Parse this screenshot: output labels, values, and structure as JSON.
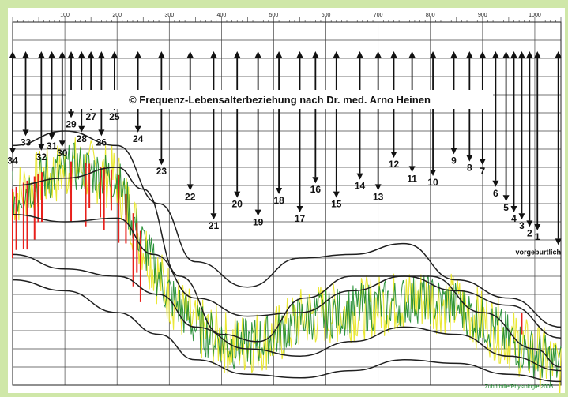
{
  "chart_data": {
    "type": "line",
    "title": "© Frequenz-Lebensalterbeziehung nach Dr. med. Arno Heinen",
    "x_ticks": [
      "100",
      "200",
      "300",
      "400",
      "500",
      "600",
      "700",
      "800",
      "900",
      "1000"
    ],
    "xlim": [
      0,
      1050
    ],
    "ylim": [
      0,
      1
    ],
    "grid": true,
    "age_labels": [
      {
        "label": "34",
        "x": 0,
        "y": 0.61
      },
      {
        "label": "33",
        "x": 25,
        "y": 0.66
      },
      {
        "label": "32",
        "x": 55,
        "y": 0.62
      },
      {
        "label": "31",
        "x": 75,
        "y": 0.65
      },
      {
        "label": "30",
        "x": 95,
        "y": 0.63
      },
      {
        "label": "29",
        "x": 112,
        "y": 0.71
      },
      {
        "label": "28",
        "x": 132,
        "y": 0.67
      },
      {
        "label": "27",
        "x": 150,
        "y": 0.73
      },
      {
        "label": "26",
        "x": 170,
        "y": 0.66
      },
      {
        "label": "25",
        "x": 195,
        "y": 0.73
      },
      {
        "label": "24",
        "x": 240,
        "y": 0.67
      },
      {
        "label": "23",
        "x": 285,
        "y": 0.58
      },
      {
        "label": "22",
        "x": 340,
        "y": 0.51
      },
      {
        "label": "21",
        "x": 385,
        "y": 0.43
      },
      {
        "label": "20",
        "x": 430,
        "y": 0.49
      },
      {
        "label": "19",
        "x": 470,
        "y": 0.44
      },
      {
        "label": "18",
        "x": 510,
        "y": 0.5
      },
      {
        "label": "17",
        "x": 550,
        "y": 0.45
      },
      {
        "label": "16",
        "x": 580,
        "y": 0.53
      },
      {
        "label": "15",
        "x": 620,
        "y": 0.49
      },
      {
        "label": "14",
        "x": 665,
        "y": 0.54
      },
      {
        "label": "13",
        "x": 700,
        "y": 0.51
      },
      {
        "label": "12",
        "x": 730,
        "y": 0.6
      },
      {
        "label": "11",
        "x": 765,
        "y": 0.56
      },
      {
        "label": "10",
        "x": 805,
        "y": 0.55
      },
      {
        "label": "9",
        "x": 845,
        "y": 0.61
      },
      {
        "label": "8",
        "x": 875,
        "y": 0.59
      },
      {
        "label": "7",
        "x": 900,
        "y": 0.58
      },
      {
        "label": "6",
        "x": 925,
        "y": 0.52
      },
      {
        "label": "5",
        "x": 945,
        "y": 0.48
      },
      {
        "label": "4",
        "x": 960,
        "y": 0.45
      },
      {
        "label": "3",
        "x": 975,
        "y": 0.43
      },
      {
        "label": "2",
        "x": 990,
        "y": 0.41
      },
      {
        "label": "1",
        "x": 1005,
        "y": 0.4
      },
      {
        "label": "vorgeburtlich",
        "x": 1010,
        "y": 0.36
      }
    ],
    "series": [
      {
        "color": "#1f1f1f",
        "x": [
          0,
          100,
          200,
          280,
          350,
          450,
          550,
          650,
          750,
          850,
          950,
          1050
        ],
        "y": [
          0.66,
          0.7,
          0.66,
          0.5,
          0.34,
          0.27,
          0.35,
          0.36,
          0.39,
          0.29,
          0.24,
          0.16
        ]
      },
      {
        "color": "#1f1f1f",
        "x": [
          0,
          100,
          200,
          250,
          320,
          400,
          470,
          560,
          650,
          800,
          900,
          1000,
          1050
        ],
        "y": [
          0.55,
          0.57,
          0.6,
          0.54,
          0.3,
          0.14,
          0.12,
          0.24,
          0.3,
          0.3,
          0.2,
          0.1,
          0.05
        ]
      },
      {
        "color": "#1f1f1f",
        "x": [
          0,
          100,
          200,
          270,
          350,
          450,
          550,
          650,
          750,
          850,
          950,
          1050
        ],
        "y": [
          0.47,
          0.45,
          0.46,
          0.36,
          0.24,
          0.19,
          0.2,
          0.26,
          0.3,
          0.26,
          0.22,
          0.13
        ]
      },
      {
        "color": "#1f1f1f",
        "x": [
          0,
          100,
          200,
          280,
          350,
          450,
          550,
          650,
          750,
          850,
          950,
          1050
        ],
        "y": [
          0.36,
          0.32,
          0.3,
          0.25,
          0.16,
          0.1,
          0.08,
          0.12,
          0.16,
          0.14,
          0.08,
          0.04
        ]
      },
      {
        "color": "#1f1f1f",
        "x": [
          0,
          100,
          200,
          280,
          350,
          450,
          550,
          650,
          750,
          850,
          950,
          1050
        ],
        "y": [
          0.29,
          0.26,
          0.2,
          0.14,
          0.07,
          0.03,
          0.02,
          0.04,
          0.07,
          0.06,
          0.03,
          0.01
        ]
      }
    ],
    "noise": {
      "green_color": "#1a8a2a",
      "yellow_color": "#e8e61e",
      "red_color": "#e8201c",
      "center_x": [
        0,
        60,
        120,
        200,
        240,
        290,
        350,
        420,
        500,
        560,
        620,
        700,
        780,
        850,
        920,
        980,
        1050
      ],
      "center_y": [
        0.52,
        0.57,
        0.6,
        0.57,
        0.42,
        0.27,
        0.16,
        0.11,
        0.13,
        0.19,
        0.2,
        0.22,
        0.24,
        0.22,
        0.16,
        0.1,
        0.05
      ]
    },
    "footer_text": "Zuhörhilfe/Physiologie 2005"
  }
}
